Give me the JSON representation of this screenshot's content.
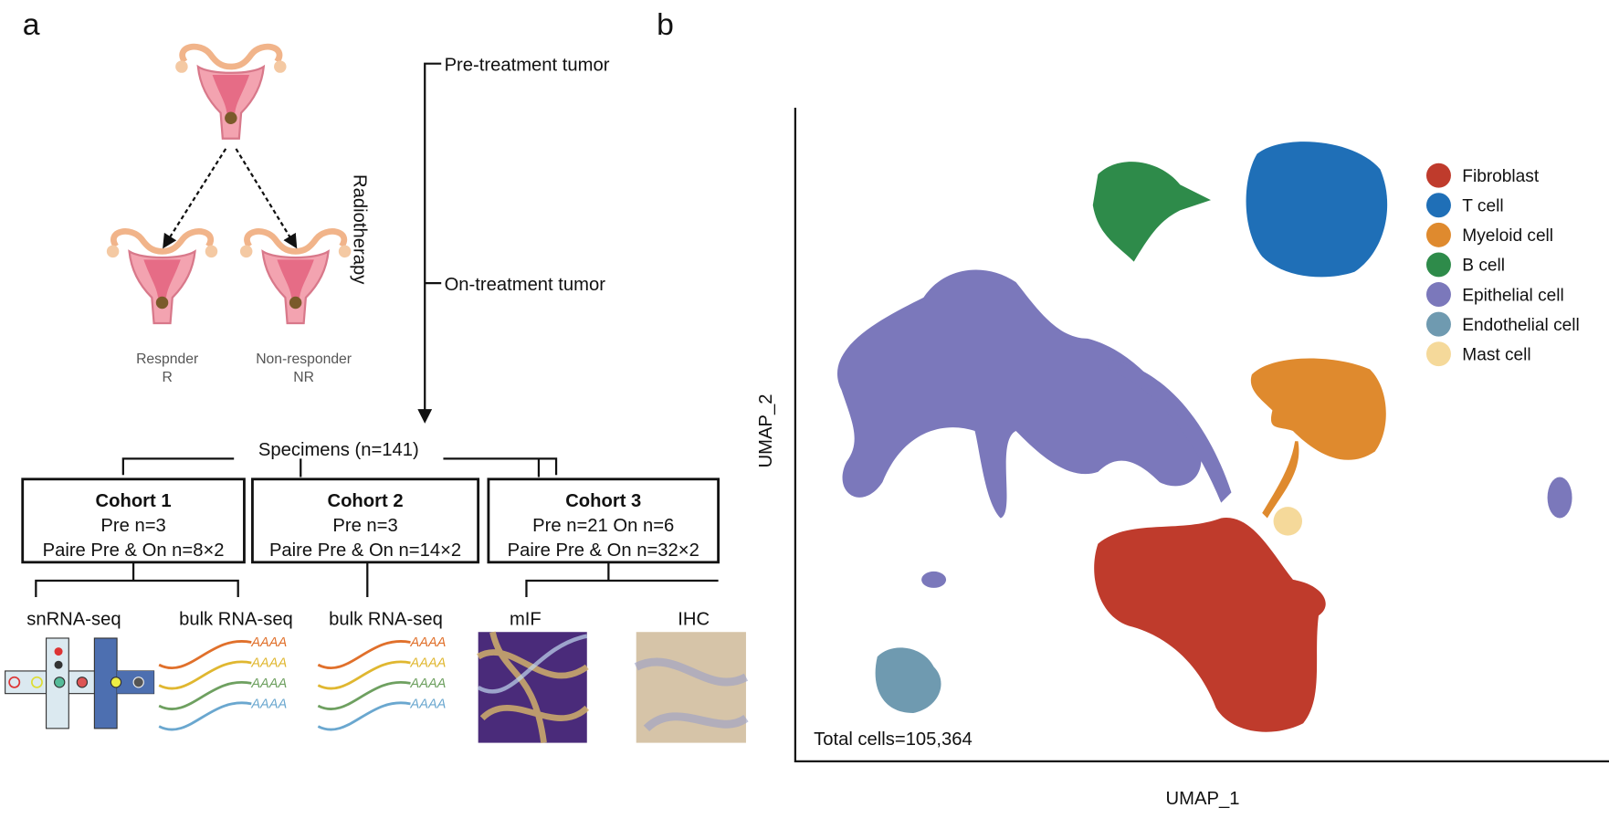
{
  "panel_a": {
    "label": "a",
    "timeline": {
      "pre": "Pre-treatment tumor",
      "on": "On-treatment tumor"
    },
    "treatment": "Radiotherapy",
    "responder": {
      "name": "Respnder",
      "abbr": "R"
    },
    "non_responder": {
      "name": "Non-responder",
      "abbr": "NR"
    },
    "specimens": "Specimens (n=141)",
    "cohorts": [
      {
        "title": "Cohort 1",
        "lines": [
          "Pre n=3",
          "Paire Pre & On n=8×2"
        ]
      },
      {
        "title": "Cohort 2",
        "lines": [
          "Pre n=3",
          "Paire Pre & On n=14×2"
        ]
      },
      {
        "title": "Cohort 3",
        "lines": [
          "Pre n=21 On n=6",
          "Paire Pre & On n=32×2"
        ]
      }
    ],
    "assays": [
      "snRNA-seq",
      "bulk RNA-seq",
      "bulk RNA-seq",
      "mIF",
      "IHC"
    ],
    "poly_a": "AAAA"
  },
  "panel_b": {
    "label": "b",
    "x_label": "UMAP_1",
    "y_label": "UMAP_2",
    "total": "Total cells=105,364",
    "legend": [
      {
        "name": "Fibroblast",
        "color": "#bf3b2c"
      },
      {
        "name": "T cell",
        "color": "#1f6fb7"
      },
      {
        "name": "Myeloid cell",
        "color": "#df8a2e"
      },
      {
        "name": "B cell",
        "color": "#2e8b4a"
      },
      {
        "name": "Epithelial cell",
        "color": "#7b78bb"
      },
      {
        "name": "Endothelial cell",
        "color": "#6f9ab0"
      },
      {
        "name": "Mast cell",
        "color": "#f5d99a"
      }
    ]
  }
}
